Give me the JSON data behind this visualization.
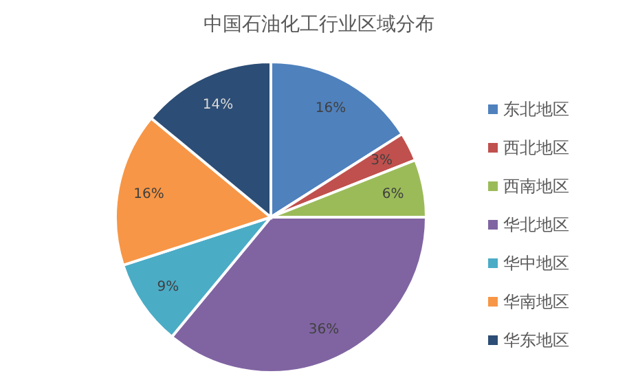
{
  "chart_data": {
    "type": "pie",
    "title": "中国石油化工行业区域分布",
    "categories": [
      "东北地区",
      "西北地区",
      "西南地区",
      "华北地区",
      "华中地区",
      "华南地区",
      "华东地区"
    ],
    "values": [
      16,
      3,
      6,
      36,
      9,
      16,
      14
    ],
    "value_labels": [
      "16%",
      "3%",
      "6%",
      "36%",
      "9%",
      "16%",
      "14%"
    ],
    "colors": [
      "#4f81bd",
      "#c0504d",
      "#9bbb59",
      "#8064a2",
      "#4bacc6",
      "#f79646",
      "#2c4d75"
    ],
    "legend": "right"
  }
}
